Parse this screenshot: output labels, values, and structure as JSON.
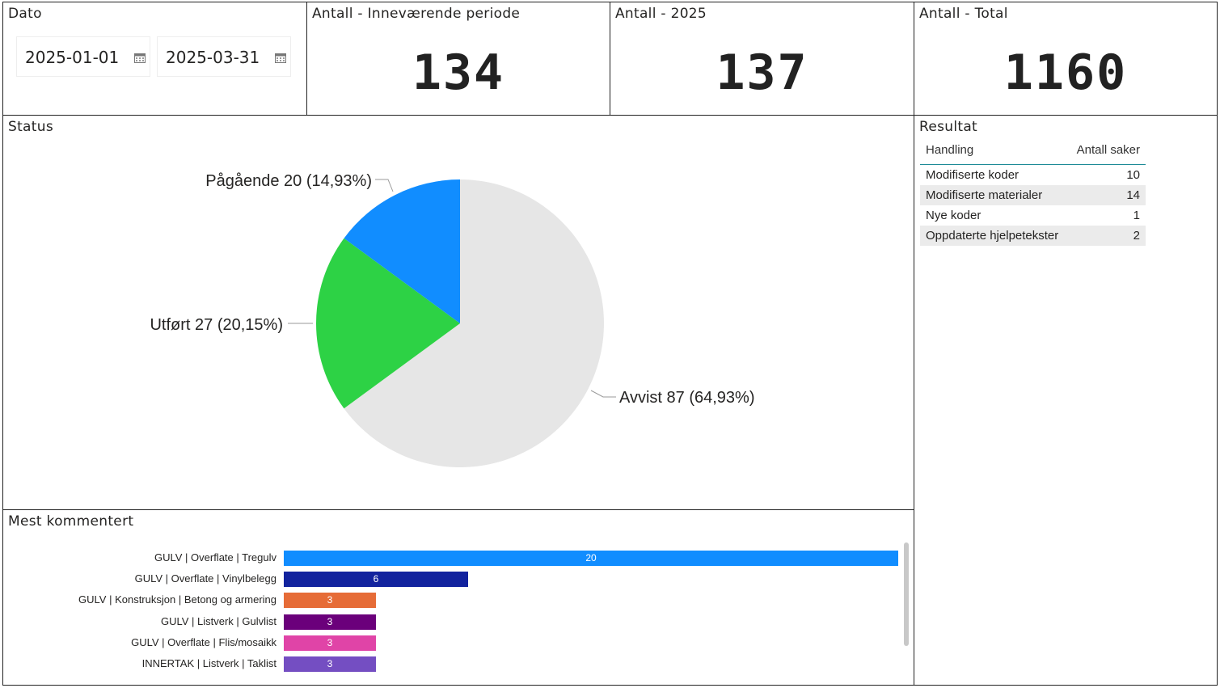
{
  "date_panel": {
    "title": "Dato",
    "start": "2025-01-01",
    "end": "2025-03-31"
  },
  "kpis": [
    {
      "title": "Antall - Inneværende periode",
      "value": "134"
    },
    {
      "title": "Antall - 2025",
      "value": "137"
    },
    {
      "title": "Antall - Total",
      "value": "1160"
    }
  ],
  "status": {
    "title": "Status",
    "chart_data": {
      "type": "pie",
      "title": "Status",
      "slices": [
        {
          "label": "Avvist",
          "value": 87,
          "percent": "64,93%",
          "display": "Avvist 87 (64,93%)",
          "color": "#e6e6e6"
        },
        {
          "label": "Utført",
          "value": 27,
          "percent": "20,15%",
          "display": "Utført 27 (20,15%)",
          "color": "#2dd245"
        },
        {
          "label": "Pågående",
          "value": 20,
          "percent": "14,93%",
          "display": "Pågående 20 (14,93%)",
          "color": "#118dff"
        }
      ]
    }
  },
  "result": {
    "title": "Resultat",
    "columns": [
      "Handling",
      "Antall saker"
    ],
    "rows": [
      [
        "Modifiserte koder",
        "10"
      ],
      [
        "Modifiserte materialer",
        "14"
      ],
      [
        "Nye koder",
        "1"
      ],
      [
        "Oppdaterte hjelpetekster",
        "2"
      ]
    ]
  },
  "most_commented": {
    "title": "Mest kommentert",
    "chart_data": {
      "type": "bar",
      "orientation": "horizontal",
      "categories": [
        "GULV | Overflate | Tregulv",
        "GULV | Overflate | Vinylbelegg",
        "GULV | Konstruksjon | Betong og armering",
        "GULV | Listverk | Gulvlist",
        "GULV | Overflate | Flis/mosaikk",
        "INNERTAK | Listverk | Taklist"
      ],
      "values": [
        20,
        6,
        3,
        3,
        3,
        3
      ],
      "colors": [
        "#118dff",
        "#12239e",
        "#e66c37",
        "#6b007b",
        "#e044a7",
        "#744ec2"
      ],
      "xlim": [
        0,
        20
      ]
    }
  }
}
